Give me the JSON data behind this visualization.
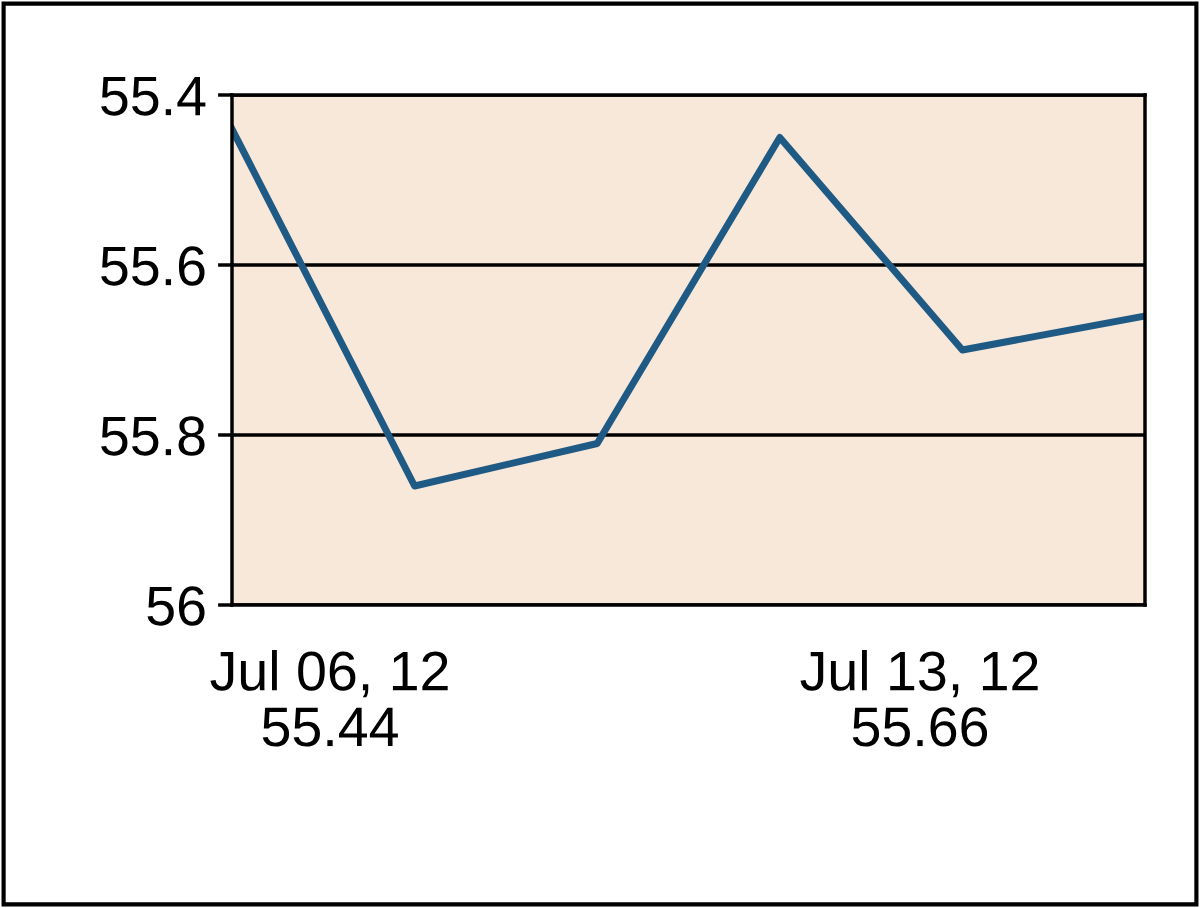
{
  "chart_data": {
    "type": "line",
    "categories": [
      null,
      null,
      null,
      null,
      null,
      null
    ],
    "series": [
      {
        "color": "#1f5a85",
        "values": [
          55.44,
          55.86,
          55.81,
          55.45,
          55.7,
          55.66
        ]
      }
    ],
    "annotations": [
      "Jul 06, 12\n55.44",
      "Jul 13, 12\n55.66"
    ],
    "ylim": [
      56,
      55.4
    ],
    "yticks": [
      55.4,
      55.6,
      55.8,
      56
    ],
    "grid": "y",
    "legend": false,
    "marker": "none",
    "line_style": "solid"
  }
}
